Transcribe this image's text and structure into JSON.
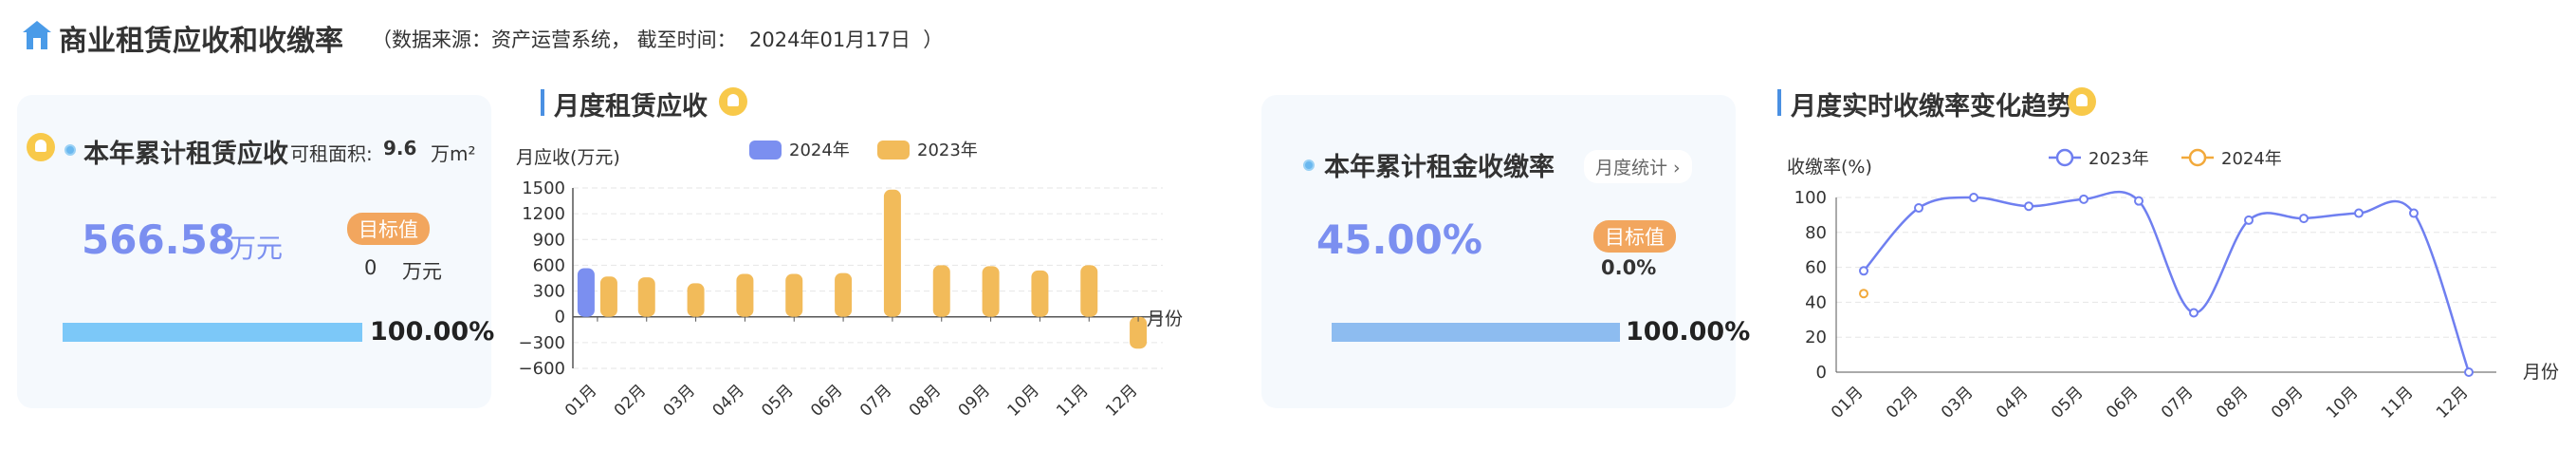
{
  "header": {
    "title": "商业租赁应收和收缴率",
    "source_note": "（数据来源：资产运营系统， 截至时间：  2024年01月17日  ）"
  },
  "receivable_card": {
    "label": "本年累计租赁应收",
    "area_label": "可租面积:",
    "area_value": "9.6",
    "area_unit": "万m²",
    "amount": "566.58",
    "amount_unit": "万元",
    "target_badge": "目标值",
    "target_value": "0",
    "target_unit": "万元",
    "progress_pct": "100.00%",
    "progress_fraction": 1.0,
    "bar_color": "#7cc8f8"
  },
  "monthly_receivable": {
    "title": "月度租赁应收",
    "chart_data": {
      "type": "bar",
      "ylabel": "月应收(万元)",
      "xlabel": "月份",
      "categories": [
        "01月",
        "02月",
        "03月",
        "04月",
        "05月",
        "06月",
        "07月",
        "08月",
        "09月",
        "10月",
        "11月",
        "12月"
      ],
      "ylim": [
        -600,
        1500
      ],
      "yticks": [
        "1500",
        "1200",
        "900",
        "600",
        "300",
        "0",
        "−300",
        "−600"
      ],
      "series": [
        {
          "name": "2024年",
          "color": "#7b8ff0",
          "values": [
            566,
            null,
            null,
            null,
            null,
            null,
            null,
            null,
            null,
            null,
            null,
            null
          ]
        },
        {
          "name": "2023年",
          "color": "#f2bb5a",
          "values": [
            470,
            460,
            390,
            500,
            500,
            510,
            1480,
            600,
            590,
            540,
            600,
            -370
          ]
        }
      ]
    }
  },
  "collection_card": {
    "label": "本年累计租金收缴率",
    "monthly_button": "月度统计 ›",
    "rate": "45.00%",
    "target_badge": "目标值",
    "target_value": "0.0%",
    "progress_pct": "100.00%",
    "progress_fraction": 1.0,
    "bar_color": "#8dbcf0"
  },
  "collection_trend": {
    "title": "月度实时收缴率变化趋势",
    "chart_data": {
      "type": "line",
      "ylabel": "收缴率(%)",
      "xlabel": "月份",
      "categories": [
        "01月",
        "02月",
        "03月",
        "04月",
        "05月",
        "06月",
        "07月",
        "08月",
        "09月",
        "10月",
        "11月",
        "12月"
      ],
      "ylim": [
        0,
        100
      ],
      "yticks": [
        "100",
        "80",
        "60",
        "40",
        "20",
        "0"
      ],
      "series": [
        {
          "name": "2023年",
          "color": "#6f7ff0",
          "values": [
            58,
            94,
            100,
            95,
            99,
            98,
            34,
            87,
            88,
            91,
            91,
            0
          ]
        },
        {
          "name": "2024年",
          "color": "#f2a93b",
          "values": [
            45,
            null,
            null,
            null,
            null,
            null,
            null,
            null,
            null,
            null,
            null,
            null
          ]
        }
      ]
    }
  }
}
